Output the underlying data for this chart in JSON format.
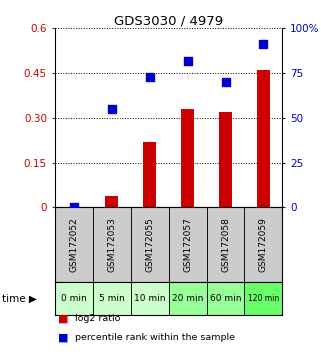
{
  "title": "GDS3030 / 4979",
  "categories": [
    "GSM172052",
    "GSM172053",
    "GSM172055",
    "GSM172057",
    "GSM172058",
    "GSM172059"
  ],
  "time_labels": [
    "0 min",
    "5 min",
    "10 min",
    "20 min",
    "60 min",
    "120 min"
  ],
  "log2_ratio": [
    0.0,
    0.04,
    0.22,
    0.33,
    0.32,
    0.46
  ],
  "percentile_rank": [
    0.0,
    55,
    73,
    82,
    70,
    91
  ],
  "bar_color": "#cc0000",
  "dot_color": "#0000cc",
  "left_yticks": [
    0,
    0.15,
    0.3,
    0.45,
    0.6
  ],
  "left_ylabels": [
    "0",
    "0.15",
    "0.30",
    "0.45",
    "0.6"
  ],
  "right_yticks": [
    0,
    25,
    50,
    75,
    100
  ],
  "right_ylabels": [
    "0",
    "25",
    "50",
    "75",
    "100%"
  ],
  "ylabel_left_color": "#cc0000",
  "ylabel_right_color": "#0000cc",
  "bg_color": "#ffffff",
  "plot_bg_color": "#ffffff",
  "gsm_bg_color": "#cccccc",
  "time_bg_colors": [
    "#ccffcc",
    "#ccffcc",
    "#ccffcc",
    "#99ff99",
    "#99ff99",
    "#66ff66"
  ],
  "bar_width": 0.35,
  "dot_size": 40,
  "legend_items": [
    {
      "color": "#cc0000",
      "label": "log2 ratio"
    },
    {
      "color": "#0000cc",
      "label": "percentile rank within the sample"
    }
  ]
}
